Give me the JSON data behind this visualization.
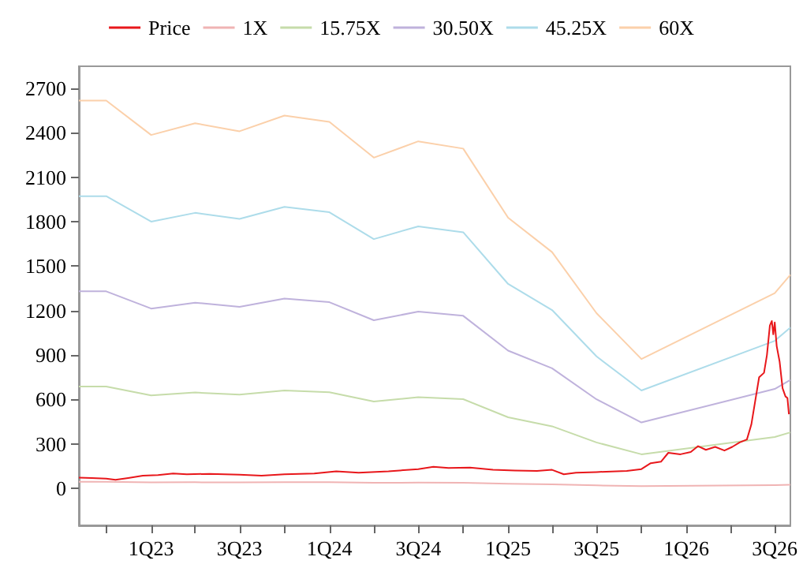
{
  "chart_data": {
    "type": "line",
    "legend": "top",
    "grid": false,
    "marker": "none",
    "line_style": "solid",
    "xlim": [
      "2022-08-06",
      "2026-08-02"
    ],
    "xticks": [
      {
        "value": "2022-10-01",
        "label": null
      },
      {
        "value": "2023-01-01",
        "label": "1Q23"
      },
      {
        "value": "2023-04-01",
        "label": null
      },
      {
        "value": "2023-07-01",
        "label": "3Q23"
      },
      {
        "value": "2023-10-01",
        "label": null
      },
      {
        "value": "2024-01-01",
        "label": "1Q24"
      },
      {
        "value": "2024-04-01",
        "label": null
      },
      {
        "value": "2024-07-01",
        "label": "3Q24"
      },
      {
        "value": "2024-10-01",
        "label": null
      },
      {
        "value": "2025-01-01",
        "label": "1Q25"
      },
      {
        "value": "2025-04-01",
        "label": null
      },
      {
        "value": "2025-07-01",
        "label": "3Q25"
      },
      {
        "value": "2025-10-01",
        "label": null
      },
      {
        "value": "2026-01-01",
        "label": "1Q26"
      },
      {
        "value": "2026-04-01",
        "label": null
      },
      {
        "value": "2026-07-01",
        "label": "3Q26"
      }
    ],
    "ylim": [
      -250,
      2850
    ],
    "yticks": [
      0,
      300,
      600,
      900,
      1200,
      1500,
      1800,
      2100,
      2400,
      2700
    ],
    "x": [
      "2022-08-06",
      "2022-10-01",
      "2023-01-01",
      "2023-04-01",
      "2023-07-01",
      "2023-10-01",
      "2024-01-01",
      "2024-04-01",
      "2024-07-01",
      "2024-10-01",
      "2025-01-01",
      "2025-04-01",
      "2025-07-01",
      "2025-10-01",
      "2026-07-01",
      "2026-08-02"
    ],
    "series": [
      {
        "name": "Price",
        "color": "#e8171b",
        "x": [
          "2022-08-06",
          "2022-09-01",
          "2022-10-01",
          "2022-10-20",
          "2022-11-15",
          "2022-12-15",
          "2023-01-15",
          "2023-02-15",
          "2023-03-15",
          "2023-05-01",
          "2023-07-01",
          "2023-08-15",
          "2023-10-01",
          "2023-12-01",
          "2024-01-15",
          "2024-03-01",
          "2024-05-01",
          "2024-07-01",
          "2024-08-01",
          "2024-09-01",
          "2024-10-15",
          "2024-12-01",
          "2025-01-15",
          "2025-03-01",
          "2025-04-01",
          "2025-04-25",
          "2025-05-20",
          "2025-07-01",
          "2025-09-01",
          "2025-10-01",
          "2025-10-20",
          "2025-11-10",
          "2025-11-25",
          "2025-12-20",
          "2026-01-10",
          "2026-01-25",
          "2026-02-10",
          "2026-03-01",
          "2026-03-20",
          "2026-04-05",
          "2026-04-20",
          "2026-05-05",
          "2026-05-14",
          "2026-05-30",
          "2026-06-09",
          "2026-06-15",
          "2026-06-21",
          "2026-06-25",
          "2026-06-28",
          "2026-07-01",
          "2026-07-05",
          "2026-07-11",
          "2026-07-17",
          "2026-07-23",
          "2026-07-27",
          "2026-07-30"
        ],
        "values": [
          72,
          70,
          65,
          58,
          70,
          85,
          90,
          100,
          95,
          98,
          92,
          85,
          95,
          100,
          115,
          105,
          115,
          130,
          145,
          138,
          140,
          125,
          120,
          118,
          125,
          95,
          105,
          110,
          118,
          130,
          170,
          180,
          240,
          230,
          245,
          285,
          260,
          280,
          255,
          280,
          310,
          330,
          430,
          750,
          780,
          900,
          1100,
          1130,
          1040,
          1120,
          960,
          855,
          676,
          620,
          610,
          500
        ]
      },
      {
        "name": "1X",
        "color": "#f0b4b4",
        "values": [
          44,
          44,
          40,
          41,
          40,
          42,
          41,
          37,
          39,
          38,
          31,
          27,
          20,
          15,
          22,
          24
        ]
      },
      {
        "name": "15.75X",
        "color": "#c6dcaa",
        "values": [
          687,
          687,
          627,
          647,
          633,
          661,
          649,
          586,
          616,
          602,
          480,
          419,
          310,
          230,
          347,
          378
        ]
      },
      {
        "name": "30.50X",
        "color": "#bfb2dc",
        "values": [
          1330,
          1330,
          1214,
          1254,
          1226,
          1281,
          1257,
          1135,
          1193,
          1165,
          930,
          811,
          601,
          445,
          671,
          732
        ]
      },
      {
        "name": "45.25X",
        "color": "#addcea",
        "values": [
          1973,
          1973,
          1801,
          1860,
          1819,
          1901,
          1864,
          1683,
          1769,
          1729,
          1380,
          1204,
          891,
          661,
          996,
          1086
        ]
      },
      {
        "name": "60X",
        "color": "#fbd0aa",
        "values": [
          2618,
          2618,
          2386,
          2465,
          2411,
          2517,
          2474,
          2233,
          2343,
          2294,
          1827,
          1595,
          1183,
          873,
          1318,
          1442
        ]
      }
    ]
  }
}
